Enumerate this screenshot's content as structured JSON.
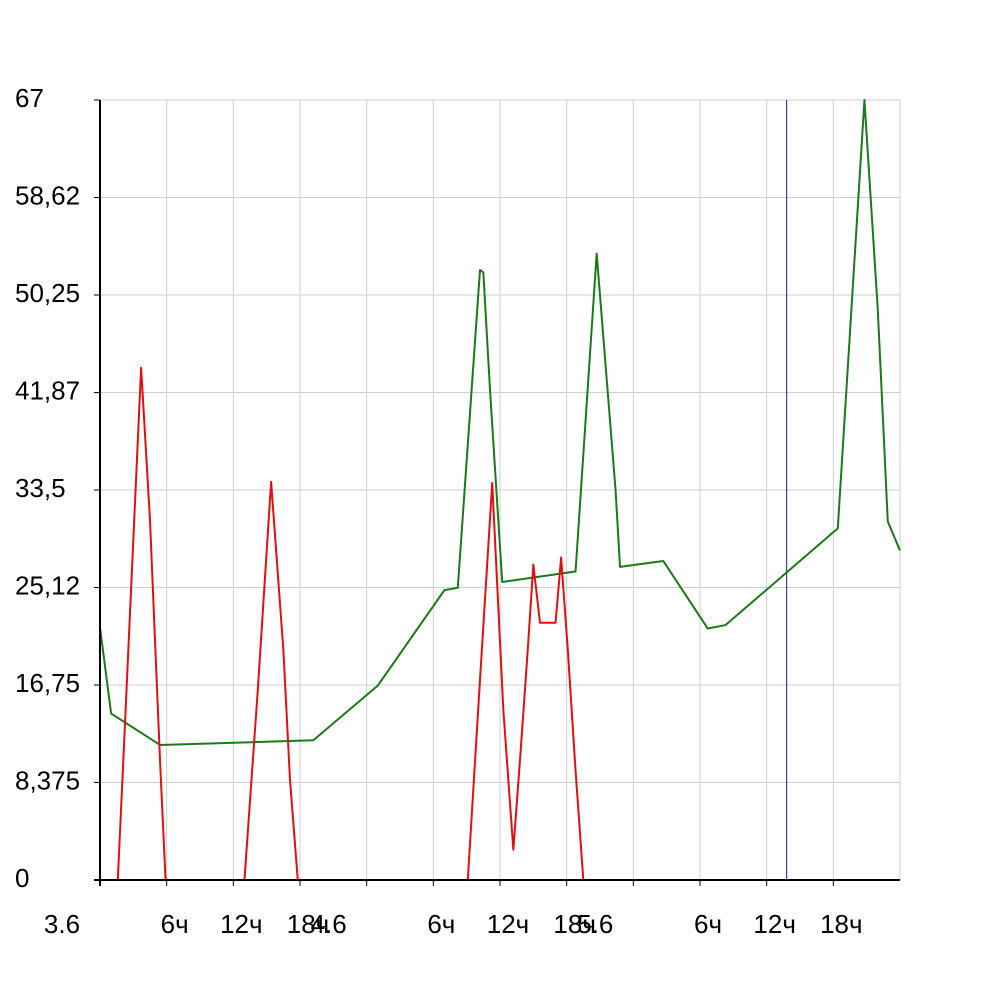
{
  "chart_data": {
    "type": "line",
    "x_unit": "hours",
    "xlim": [
      0,
      72
    ],
    "xticks": [
      {
        "value": 0,
        "label": "3.6"
      },
      {
        "value": 6,
        "label": "6ч"
      },
      {
        "value": 12,
        "label": "12ч"
      },
      {
        "value": 18,
        "label": "18ч"
      },
      {
        "value": 24,
        "label": "4.6"
      },
      {
        "value": 30,
        "label": "6ч"
      },
      {
        "value": 36,
        "label": "12ч"
      },
      {
        "value": 42,
        "label": "18ч"
      },
      {
        "value": 48,
        "label": "5.6"
      },
      {
        "value": 54,
        "label": "6ч"
      },
      {
        "value": 60,
        "label": "12ч"
      },
      {
        "value": 66,
        "label": "18ч"
      }
    ],
    "ylim": [
      0,
      67
    ],
    "yticks": [
      0,
      {
        "value": 8.375,
        "label": "8,375"
      },
      {
        "value": 16.75,
        "label": "16,75"
      },
      {
        "value": 25.12,
        "label": "25,12"
      },
      {
        "value": 33.5,
        "label": "33,5"
      },
      {
        "value": 41.87,
        "label": "41,87"
      },
      {
        "value": 50.25,
        "label": "50,25"
      },
      {
        "value": 58.62,
        "label": "58,62"
      },
      67
    ],
    "grid": true,
    "cursor": {
      "x": 61.8,
      "color": "#1a1a80"
    },
    "series": [
      {
        "color": "#1a7a1a",
        "x": [
          0,
          1,
          5.4,
          19.2,
          25,
          31,
          32.2,
          34.2,
          34.5,
          35.1,
          36.2,
          42.8,
          44.7,
          46.4,
          46.8,
          50.7,
          54.7,
          56.3,
          66.4,
          68.8,
          70,
          70.9,
          72
        ],
        "values": [
          21.7,
          14.3,
          11.6,
          12.0,
          16.7,
          24.9,
          25.1,
          52.4,
          52.2,
          42.1,
          25.6,
          26.5,
          53.8,
          33.5,
          26.9,
          27.4,
          21.6,
          21.9,
          30.2,
          67,
          49.0,
          30.8,
          28.3
        ]
      },
      {
        "color": "#e01010",
        "x": [
          0,
          1.6,
          2.1,
          3.7,
          4.5,
          5.4,
          5.9,
          13,
          14.2,
          15.4,
          16.5,
          17.1,
          17.8,
          33.1,
          34.2,
          35.3,
          36.3,
          37.2,
          37.8,
          38.5,
          39,
          39.6,
          41,
          41.5,
          42.1,
          42.8,
          43.5,
          72
        ],
        "values": [
          0,
          0,
          10.3,
          44.0,
          30.9,
          10.3,
          0,
          0,
          16.3,
          34.2,
          19.8,
          8.6,
          0,
          0,
          17.2,
          34.1,
          14.6,
          2.6,
          10.3,
          19.8,
          27.1,
          22.1,
          22.1,
          27.7,
          19.8,
          9.4,
          0,
          0
        ]
      }
    ]
  }
}
